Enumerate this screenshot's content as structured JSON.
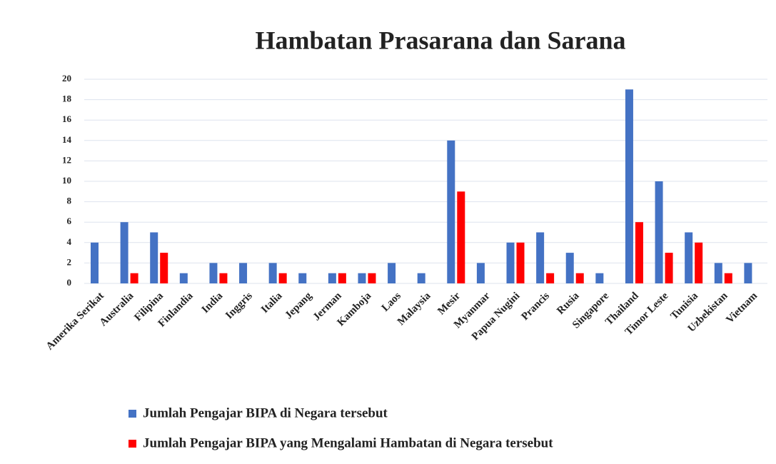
{
  "chart_data": {
    "type": "bar",
    "title": "Hambatan Prasarana dan Sarana",
    "categories": [
      "Amerika Serikat",
      "Australia",
      "Filipina",
      "Finlandia",
      "India",
      "Inggris",
      "Italia",
      "Jepang",
      "Jerman",
      "Kamboja",
      "Laos",
      "Malaysia",
      "Mesir",
      "Myanmar",
      "Papua Nugini",
      "Prancis",
      "Rusia",
      "Singapore",
      "Thailand",
      "Timor Leste",
      "Tunisia",
      "Uzbekistan",
      "Vietnam"
    ],
    "series": [
      {
        "name": "Jumlah Pengajar BIPA di Negara tersebut",
        "color": "#4472c4",
        "values": [
          4,
          6,
          5,
          1,
          2,
          2,
          2,
          1,
          1,
          1,
          2,
          1,
          14,
          2,
          4,
          5,
          3,
          1,
          19,
          10,
          5,
          2,
          2
        ]
      },
      {
        "name": "Jumlah Pengajar BIPA yang Mengalami Hambatan di Negara tersebut",
        "color": "#ff0000",
        "values": [
          0,
          1,
          3,
          0,
          1,
          0,
          1,
          0,
          1,
          1,
          0,
          0,
          9,
          0,
          4,
          1,
          1,
          0,
          6,
          3,
          4,
          1,
          0
        ]
      }
    ],
    "ylim": [
      0,
      20
    ],
    "yticks": [
      0,
      2,
      4,
      6,
      8,
      10,
      12,
      14,
      16,
      18,
      20
    ],
    "grid": true,
    "legend": "bottom"
  }
}
